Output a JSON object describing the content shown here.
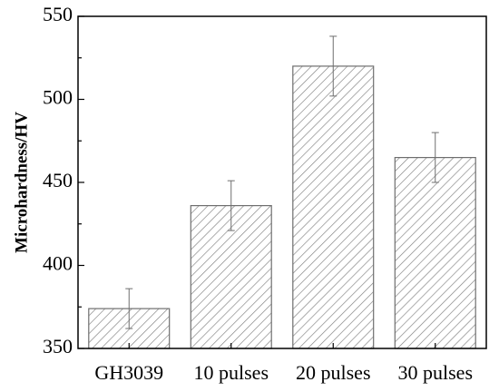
{
  "chart_data": {
    "type": "bar",
    "title": "",
    "xlabel": "",
    "ylabel": "Microhardness/HV",
    "ylim": [
      350,
      550
    ],
    "yticks": [
      350,
      400,
      450,
      500,
      550
    ],
    "categories": [
      "GH3039",
      "10 pulses",
      "20 pulses",
      "30 pulses"
    ],
    "values": [
      374,
      436,
      520,
      465
    ],
    "errors": [
      12,
      15,
      18,
      15
    ],
    "grid": false,
    "legend": "none",
    "colors": {
      "bar_fill": "#ffffff",
      "hatch": "#7f7f7f",
      "bar_edge": "#6e6e6e",
      "axis": "#000000",
      "error_bar": "#6e6e6e"
    }
  }
}
